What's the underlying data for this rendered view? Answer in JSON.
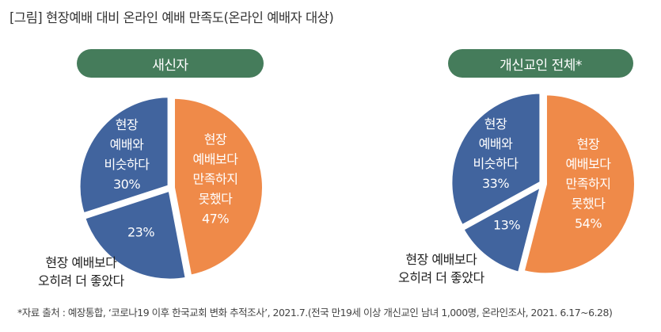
{
  "title": "[그림] 현장예배 대비 온라인 예배 만족도(온라인 예배자 대상)",
  "footnote": "*자료 출처 : 예장통합, ‘코로나19 이후 한국교회 변화 추적조사’, 2021.7.(전국 만19세 이상 개신교인 남녀 1,000명, 온라인조사, 2021. 6.17~6.28)",
  "chart_data": [
    {
      "type": "pie",
      "title": "새신자",
      "slices": [
        {
          "label": [
            "현장",
            "예배보다",
            "만족하지",
            "못했다"
          ],
          "value": 47,
          "value_label": "47%",
          "color": "#ef8a49"
        },
        {
          "label": [
            "현장 예배보다",
            "오히려 더 좋았다"
          ],
          "value": 23,
          "value_label": "23%",
          "color": "#41649e"
        },
        {
          "label": [
            "현장",
            "예배와",
            "비슷하다"
          ],
          "value": 30,
          "value_label": "30%",
          "color": "#41649e"
        }
      ]
    },
    {
      "type": "pie",
      "title": "개신교인 전체*",
      "slices": [
        {
          "label": [
            "현장",
            "예배보다",
            "만족하지",
            "못했다"
          ],
          "value": 54,
          "value_label": "54%",
          "color": "#ef8a49"
        },
        {
          "label": [
            "현장 예배보다",
            "오히려 더 좋았다"
          ],
          "value": 13,
          "value_label": "13%",
          "color": "#41649e"
        },
        {
          "label": [
            "현장",
            "예배와",
            "비슷하다"
          ],
          "value": 33,
          "value_label": "33%",
          "color": "#41649e"
        }
      ]
    }
  ],
  "header_color": "#457c5b"
}
